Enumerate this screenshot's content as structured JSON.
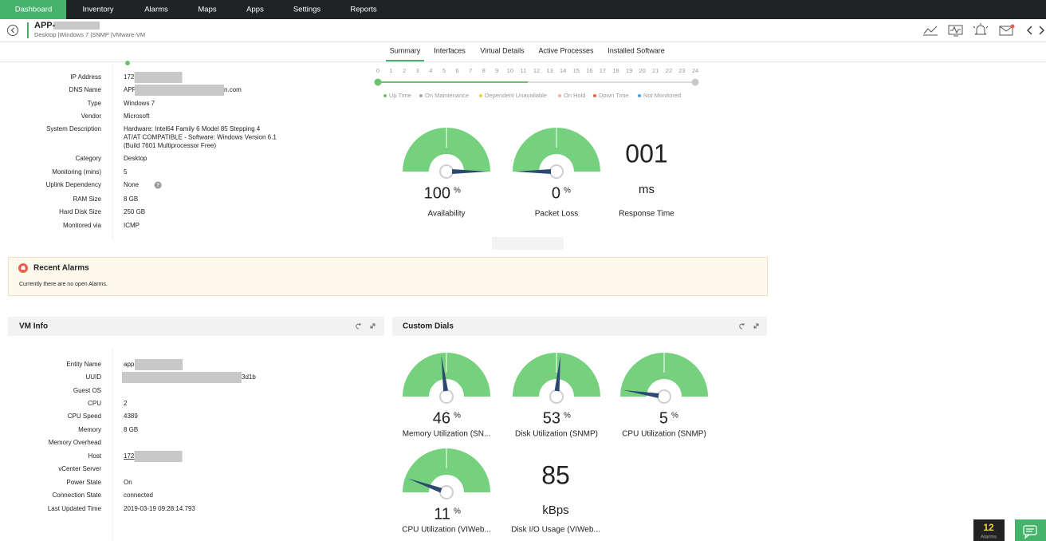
{
  "nav": {
    "tabs": [
      "Dashboard",
      "Inventory",
      "Alarms",
      "Maps",
      "Apps",
      "Settings",
      "Reports"
    ],
    "active": 0
  },
  "header": {
    "title": "APP-",
    "subtitle": "Desktop |Windows 7 |SNMP |VMware-VM"
  },
  "subtabs": {
    "items": [
      "Summary",
      "Interfaces",
      "Virtual Details",
      "Active Processes",
      "Installed Software"
    ],
    "active": 0
  },
  "device_info": [
    {
      "label": "IP Address",
      "value": "172.",
      "redacted": true
    },
    {
      "label": "DNS Name",
      "value": "APP",
      "suffix": "n.com",
      "redacted": true
    },
    {
      "label": "Type",
      "value": "Windows 7"
    },
    {
      "label": "Vendor",
      "value": "Microsoft"
    },
    {
      "label": "System Description",
      "value": [
        "Hardware: Intel64 Family 6 Model 85 Stepping 4",
        "AT/AT COMPATIBLE - Software: Windows Version 6.1",
        "(Build 7601 Multiprocessor Free)"
      ]
    },
    {
      "label": "Category",
      "value": "Desktop"
    },
    {
      "label": "Monitoring (mins)",
      "value": "5"
    },
    {
      "label": "Uplink Dependency",
      "value": "None",
      "help": "?"
    },
    {
      "label": "RAM Size",
      "value": "8 GB"
    },
    {
      "label": "Hard Disk Size",
      "value": "250 GB"
    },
    {
      "label": "Monitored via",
      "value": "ICMP"
    }
  ],
  "timeline": {
    "hours": [
      0,
      1,
      2,
      3,
      4,
      5,
      6,
      7,
      8,
      9,
      10,
      11,
      12,
      13,
      14,
      15,
      16,
      17,
      18,
      19,
      20,
      21,
      22,
      23,
      24
    ],
    "legend": [
      {
        "name": "Up Time",
        "color": "#6cc070"
      },
      {
        "name": "On Maintenance",
        "color": "#9aa9b3"
      },
      {
        "name": "Dependent Unavailable",
        "color": "#f2d33c"
      },
      {
        "name": "On Hold",
        "color": "#f3b3a6"
      },
      {
        "name": "Down Time",
        "color": "#e9604f"
      },
      {
        "name": "Not Monitored",
        "color": "#4aa3df"
      }
    ]
  },
  "summary_dials": [
    {
      "label": "Availability",
      "value": 100,
      "unit": "%"
    },
    {
      "label": "Packet Loss",
      "value": 0,
      "unit": "%"
    }
  ],
  "response_time": {
    "value": "001",
    "unit": "ms",
    "label": "Response Time"
  },
  "recent_alarms": {
    "title": "Recent Alarms",
    "message": "Currently there are no open Alarms."
  },
  "vm_info": {
    "title": "VM Info",
    "rows": [
      {
        "label": "Entity Name",
        "value": "app-",
        "redacted": true
      },
      {
        "label": "UUID",
        "suffix": "3d1b",
        "redacted": true
      },
      {
        "label": "Guest OS"
      },
      {
        "label": "CPU",
        "value": "2"
      },
      {
        "label": "CPU Speed",
        "value": "4389"
      },
      {
        "label": "Memory",
        "value": "8 GB"
      },
      {
        "label": "Memory Overhead"
      },
      {
        "label": "Host",
        "value": "172.",
        "redacted": true,
        "link": true
      },
      {
        "label": "vCenter Server"
      },
      {
        "label": "Power State",
        "value": "On"
      },
      {
        "label": "Connection State",
        "value": "connected"
      },
      {
        "label": "Last Updated Time",
        "value": "2019-03-19 09:28:14.793"
      }
    ]
  },
  "custom_dials": {
    "title": "Custom Dials",
    "dials": [
      {
        "label": "Memory Utilization (SN...",
        "value": 46,
        "unit": "%"
      },
      {
        "label": "Disk Utilization (SNMP)",
        "value": 53,
        "unit": "%"
      },
      {
        "label": "CPU Utilization (SNMP)",
        "value": 5,
        "unit": "%"
      },
      {
        "label": "CPU Utilization (VIWeb...",
        "value": 11,
        "unit": "%"
      }
    ],
    "numeric": {
      "value": 85,
      "unit": "kBps",
      "label": "Disk I/O Usage (VIWeb..."
    }
  },
  "alarm_badge": {
    "count": 12,
    "label": "Alarms"
  }
}
